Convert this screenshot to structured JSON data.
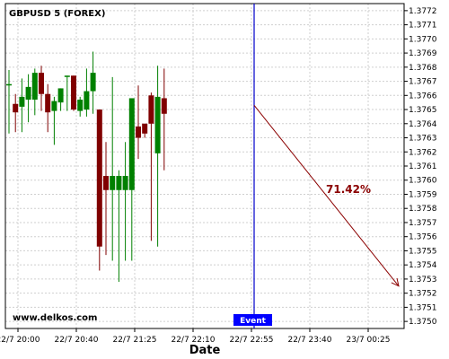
{
  "chart_data": {
    "type": "candlestick",
    "title": "GBPUSD 5 (FOREX)",
    "xlabel": "Date",
    "ylabel": "",
    "ylim": [
      1.37495,
      1.37725
    ],
    "y_ticks": [
      1.375,
      1.3751,
      1.3752,
      1.3753,
      1.3754,
      1.3755,
      1.3756,
      1.3757,
      1.3758,
      1.3759,
      1.376,
      1.3761,
      1.3762,
      1.3763,
      1.3764,
      1.3765,
      1.3766,
      1.3767,
      1.3768,
      1.3769,
      1.377,
      1.3771,
      1.3772
    ],
    "x_tick_labels": [
      "22/7 20:00",
      "22/7 20:40",
      "22/7 21:25",
      "22/7 22:10",
      "22/7 22:55",
      "22/7 23:40",
      "23/7 00:25"
    ],
    "grid": true,
    "colors": {
      "up": "#008000",
      "down": "#800000",
      "event": "#0000cc",
      "arrow": "#8b0000"
    },
    "candles": [
      {
        "o": 1.37668,
        "h": 1.37678,
        "l": 1.37633,
        "c": 1.37668
      },
      {
        "o": 1.37654,
        "h": 1.37661,
        "l": 1.37634,
        "c": 1.37648
      },
      {
        "o": 1.37652,
        "h": 1.37672,
        "l": 1.37634,
        "c": 1.37659
      },
      {
        "o": 1.37657,
        "h": 1.37675,
        "l": 1.37641,
        "c": 1.37666
      },
      {
        "o": 1.37657,
        "h": 1.37679,
        "l": 1.37646,
        "c": 1.37676
      },
      {
        "o": 1.37676,
        "h": 1.37681,
        "l": 1.37649,
        "c": 1.37661
      },
      {
        "o": 1.37661,
        "h": 1.37668,
        "l": 1.37634,
        "c": 1.37648
      },
      {
        "o": 1.37649,
        "h": 1.37659,
        "l": 1.37625,
        "c": 1.37656
      },
      {
        "o": 1.37655,
        "h": 1.37665,
        "l": 1.37649,
        "c": 1.37665
      },
      {
        "o": 1.37674,
        "h": 1.37674,
        "l": 1.37649,
        "c": 1.37674
      },
      {
        "o": 1.37674,
        "h": 1.37674,
        "l": 1.37649,
        "c": 1.3765
      },
      {
        "o": 1.37649,
        "h": 1.37659,
        "l": 1.37645,
        "c": 1.37657
      },
      {
        "o": 1.3765,
        "h": 1.37679,
        "l": 1.37645,
        "c": 1.37663
      },
      {
        "o": 1.37663,
        "h": 1.37691,
        "l": 1.37647,
        "c": 1.37676
      },
      {
        "o": 1.3765,
        "h": 1.3765,
        "l": 1.37536,
        "c": 1.37553
      },
      {
        "o": 1.37603,
        "h": 1.37627,
        "l": 1.37547,
        "c": 1.37593
      },
      {
        "o": 1.37593,
        "h": 1.37673,
        "l": 1.37543,
        "c": 1.37603
      },
      {
        "o": 1.37593,
        "h": 1.37607,
        "l": 1.37528,
        "c": 1.37603
      },
      {
        "o": 1.37593,
        "h": 1.37627,
        "l": 1.37543,
        "c": 1.37603
      },
      {
        "o": 1.37593,
        "h": 1.37657,
        "l": 1.37543,
        "c": 1.37658
      },
      {
        "o": 1.37638,
        "h": 1.37667,
        "l": 1.37615,
        "c": 1.3763
      },
      {
        "o": 1.3764,
        "h": 1.3764,
        "l": 1.3763,
        "c": 1.37633
      },
      {
        "o": 1.3766,
        "h": 1.37662,
        "l": 1.37557,
        "c": 1.3764
      },
      {
        "o": 1.37619,
        "h": 1.37681,
        "l": 1.37553,
        "c": 1.37659
      },
      {
        "o": 1.37658,
        "h": 1.37679,
        "l": 1.37607,
        "c": 1.37647
      }
    ],
    "event_label": "Event",
    "projection": {
      "start": 1.37653,
      "end": 1.37525,
      "label": "71.42%"
    },
    "watermark": "www.delkos.com"
  }
}
